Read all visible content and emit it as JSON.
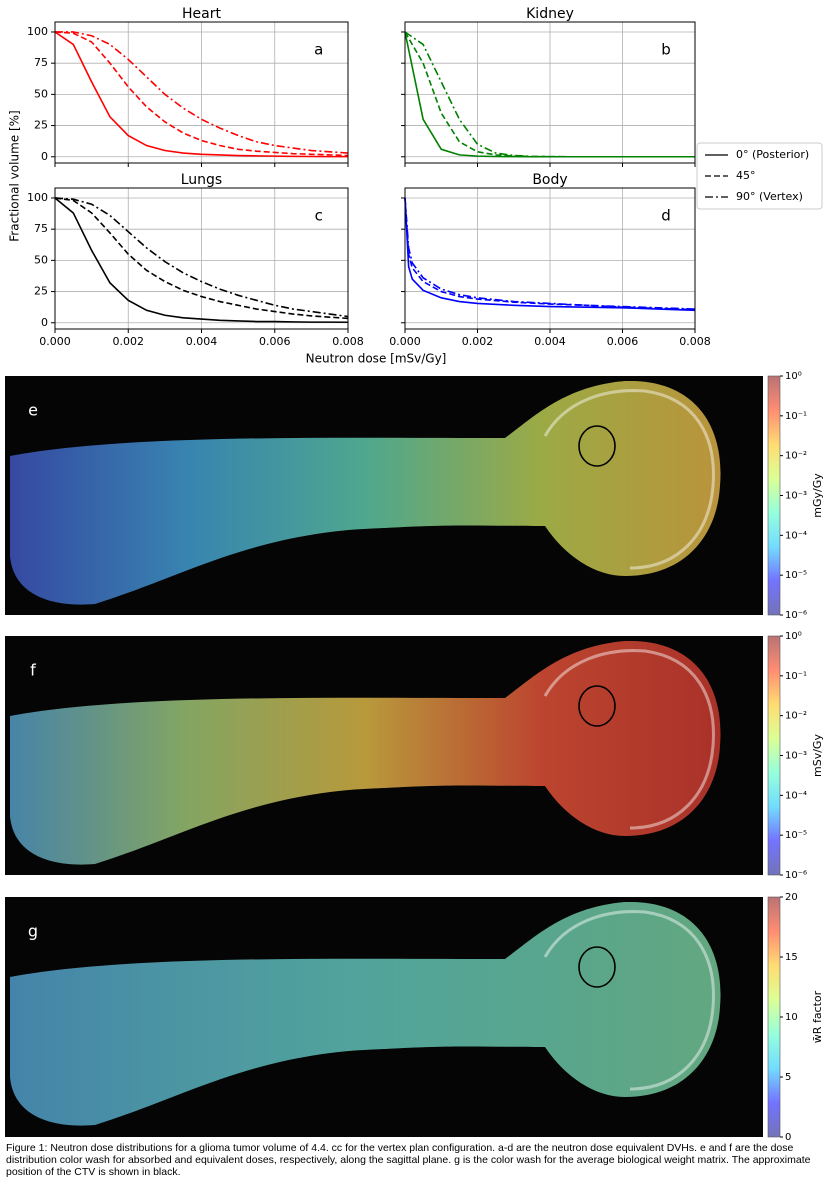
{
  "figure": {
    "xlabel": "Neutron dose [mSv/Gy]",
    "ylabel": "Fractional volume [%]",
    "legend": "right",
    "caption": "Figure 1: Neutron dose distributions for a glioma tumor volume of 4.4. cc for the vertex plan configuration. a-d are the neutron dose equivalent DVHs. e and f are the dose distribution color wash for absorbed and equivalent doses, respectively, along the sagittal plane. g is the color wash for the average biological weight matrix. The approximate position of the CTV is shown in black."
  },
  "chart_data": [
    {
      "type": "line",
      "title": "Heart",
      "annotation": "a",
      "grid": true,
      "x": [
        0,
        0.0005,
        0.001,
        0.0015,
        0.002,
        0.0025,
        0.003,
        0.0035,
        0.004,
        0.0045,
        0.005,
        0.0055,
        0.006,
        0.0065,
        0.007,
        0.0075,
        0.008
      ],
      "xlim": [
        0,
        0.008
      ],
      "ylim": [
        -5,
        108
      ],
      "series": [
        {
          "name": "0° (Posterior)",
          "color": "#ff0000",
          "linestyle": "solid",
          "values": [
            100,
            90,
            60,
            32,
            17,
            9,
            5,
            3,
            2,
            1.5,
            1,
            0.7,
            0.5,
            0.3,
            0.2,
            0.1,
            0.1
          ]
        },
        {
          "name": "45°",
          "color": "#ff0000",
          "linestyle": "dashed",
          "values": [
            100,
            99,
            92,
            75,
            56,
            40,
            28,
            19,
            13,
            9,
            6,
            4.5,
            3.5,
            2.5,
            2,
            1.5,
            1
          ]
        },
        {
          "name": "90° (Vertex)",
          "color": "#ff0000",
          "linestyle": "dashdot",
          "values": [
            100,
            100,
            97,
            90,
            78,
            64,
            50,
            39,
            30,
            23,
            17,
            12,
            9,
            7,
            5,
            4,
            3
          ]
        }
      ],
      "yticks": [
        0,
        25,
        50,
        75,
        100
      ]
    },
    {
      "type": "line",
      "title": "Kidney",
      "annotation": "b",
      "grid": true,
      "x": [
        0,
        0.0005,
        0.001,
        0.0015,
        0.002,
        0.0025,
        0.003,
        0.0035,
        0.004,
        0.0045,
        0.005,
        0.0055,
        0.006,
        0.0065,
        0.007,
        0.0075,
        0.008
      ],
      "xlim": [
        0,
        0.008
      ],
      "ylim": [
        -5,
        108
      ],
      "series": [
        {
          "name": "0° (Posterior)",
          "color": "#008000",
          "linestyle": "solid",
          "values": [
            100,
            30,
            6,
            1.5,
            0.5,
            0.2,
            0.1,
            0,
            0,
            0,
            0,
            0,
            0,
            0,
            0,
            0,
            0
          ]
        },
        {
          "name": "45°",
          "color": "#008000",
          "linestyle": "dashed",
          "values": [
            100,
            75,
            35,
            12,
            4,
            1.5,
            0.5,
            0.2,
            0.1,
            0,
            0,
            0,
            0,
            0,
            0,
            0,
            0
          ]
        },
        {
          "name": "90° (Vertex)",
          "color": "#008000",
          "linestyle": "dashdot",
          "values": [
            100,
            90,
            60,
            30,
            10,
            3,
            1,
            0.3,
            0.1,
            0,
            0,
            0,
            0,
            0,
            0,
            0,
            0
          ]
        }
      ]
    },
    {
      "type": "line",
      "title": "Lungs",
      "annotation": "c",
      "grid": true,
      "x": [
        0,
        0.0005,
        0.001,
        0.0015,
        0.002,
        0.0025,
        0.003,
        0.0035,
        0.004,
        0.0045,
        0.005,
        0.0055,
        0.006,
        0.0065,
        0.007,
        0.0075,
        0.008
      ],
      "xlim": [
        0,
        0.008
      ],
      "ylim": [
        -5,
        108
      ],
      "series": [
        {
          "name": "0° (Posterior)",
          "color": "#000000",
          "linestyle": "solid",
          "values": [
            100,
            88,
            58,
            32,
            18,
            10,
            6,
            4,
            3,
            2,
            1.5,
            1,
            1,
            0.7,
            0.5,
            0.5,
            0.4
          ]
        },
        {
          "name": "45°",
          "color": "#000000",
          "linestyle": "dashed",
          "values": [
            100,
            98,
            88,
            72,
            55,
            42,
            33,
            26,
            21,
            17,
            14,
            11,
            9,
            7,
            5.5,
            4.5,
            3.5
          ]
        },
        {
          "name": "90° (Vertex)",
          "color": "#000000",
          "linestyle": "dashdot",
          "values": [
            100,
            99,
            95,
            86,
            73,
            60,
            49,
            40,
            33,
            27,
            22,
            18,
            14,
            11,
            9,
            7,
            5
          ]
        }
      ],
      "xticks": [
        {
          "value": 0,
          "label": "0.000"
        },
        {
          "value": 0.002,
          "label": "0.002"
        },
        {
          "value": 0.004,
          "label": "0.004"
        },
        {
          "value": 0.006,
          "label": "0.006"
        },
        {
          "value": 0.008,
          "label": "0.008"
        }
      ],
      "yticks": [
        0,
        25,
        50,
        75,
        100
      ]
    },
    {
      "type": "line",
      "title": "Body",
      "annotation": "d",
      "grid": true,
      "x": [
        0,
        0.0001,
        0.0002,
        0.0005,
        0.001,
        0.0015,
        0.002,
        0.003,
        0.004,
        0.005,
        0.006,
        0.007,
        0.008
      ],
      "xlim": [
        0,
        0.008
      ],
      "ylim": [
        -5,
        108
      ],
      "series": [
        {
          "name": "0° (Posterior)",
          "color": "#0000ff",
          "linestyle": "solid",
          "values": [
            100,
            45,
            35,
            26,
            20,
            17,
            15.5,
            14,
            13,
            12.5,
            12,
            11,
            10
          ]
        },
        {
          "name": "45°",
          "color": "#0000ff",
          "linestyle": "dashed",
          "values": [
            100,
            55,
            44,
            33,
            25,
            21,
            19,
            16.5,
            15,
            14,
            12.5,
            11.5,
            10.5
          ]
        },
        {
          "name": "90° (Vertex)",
          "color": "#0000ff",
          "linestyle": "dashdot",
          "values": [
            100,
            60,
            48,
            36,
            27,
            22.5,
            20,
            17,
            15.5,
            14,
            13,
            12,
            11
          ]
        }
      ],
      "xticks": [
        {
          "value": 0,
          "label": "0.000"
        },
        {
          "value": 0.002,
          "label": "0.002"
        },
        {
          "value": 0.004,
          "label": "0.004"
        },
        {
          "value": 0.006,
          "label": "0.006"
        },
        {
          "value": 0.008,
          "label": "0.008"
        }
      ]
    },
    {
      "type": "colorbar",
      "annotation": "e",
      "label": "mGy/Gy",
      "log_scale": true,
      "ylim": [
        1e-06,
        1
      ],
      "yticks": [
        {
          "value": 1,
          "label": "10⁰"
        },
        {
          "value": 0.1,
          "label": "10⁻¹"
        },
        {
          "value": 0.01,
          "label": "10⁻²"
        },
        {
          "value": 0.001,
          "label": "10⁻³"
        },
        {
          "value": 0.0001,
          "label": "10⁻⁴"
        },
        {
          "value": 1e-05,
          "label": "10⁻⁵"
        },
        {
          "value": 1e-06,
          "label": "10⁻⁶"
        }
      ]
    },
    {
      "type": "colorbar",
      "annotation": "f",
      "label": "mSv/Gy",
      "log_scale": true,
      "ylim": [
        1e-06,
        1
      ],
      "yticks": [
        {
          "value": 1,
          "label": "10⁰"
        },
        {
          "value": 0.1,
          "label": "10⁻¹"
        },
        {
          "value": 0.01,
          "label": "10⁻²"
        },
        {
          "value": 0.001,
          "label": "10⁻³"
        },
        {
          "value": 0.0001,
          "label": "10⁻⁴"
        },
        {
          "value": 1e-05,
          "label": "10⁻⁵"
        },
        {
          "value": 1e-06,
          "label": "10⁻⁶"
        }
      ]
    },
    {
      "type": "colorbar",
      "annotation": "g",
      "label": "w̄R factor",
      "log_scale": false,
      "ylim": [
        0,
        20
      ],
      "yticks": [
        0,
        5,
        10,
        15,
        20
      ]
    }
  ]
}
